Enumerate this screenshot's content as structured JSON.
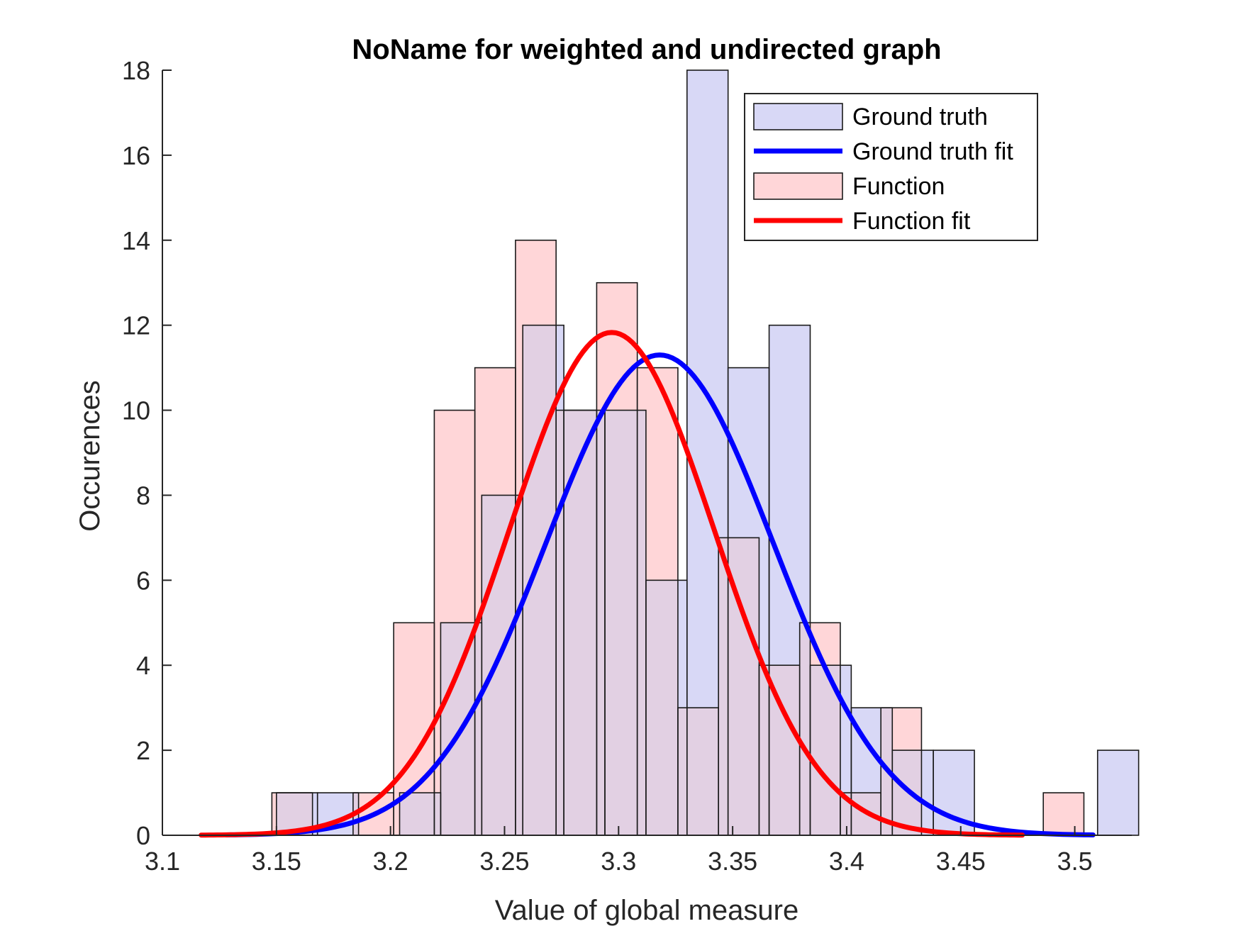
{
  "chart_data": {
    "type": "bar",
    "title": "NoName for weighted and undirected graph",
    "xlabel": "Value of global measure",
    "ylabel": "Occurences",
    "xlim": [
      3.1,
      3.525
    ],
    "ylim": [
      0,
      18
    ],
    "xticks": [
      "3.1",
      "3.15",
      "3.2",
      "3.25",
      "3.3",
      "3.35",
      "3.4",
      "3.45",
      "3.5"
    ],
    "yticks": [
      "0",
      "2",
      "4",
      "6",
      "8",
      "10",
      "12",
      "14",
      "16",
      "18"
    ],
    "grid": false,
    "legend_position": "top-right",
    "colors": {
      "ground_truth_bar": "#d8d8f6",
      "ground_truth_fit": "#0000ff",
      "function_bar": "#ffd6d8",
      "function_fit": "#ff0000",
      "overlap": "#e2d0e3"
    },
    "series": [
      {
        "name": "Ground truth",
        "kind": "histogram",
        "bin_width": 0.018,
        "bins": [
          {
            "x0": 3.15,
            "x1": 3.168,
            "count": 1
          },
          {
            "x0": 3.168,
            "x1": 3.186,
            "count": 1
          },
          {
            "x0": 3.186,
            "x1": 3.204,
            "count": 0
          },
          {
            "x0": 3.204,
            "x1": 3.222,
            "count": 1
          },
          {
            "x0": 3.222,
            "x1": 3.24,
            "count": 5
          },
          {
            "x0": 3.24,
            "x1": 3.258,
            "count": 8
          },
          {
            "x0": 3.258,
            "x1": 3.276,
            "count": 12
          },
          {
            "x0": 3.276,
            "x1": 3.294,
            "count": 10
          },
          {
            "x0": 3.294,
            "x1": 3.312,
            "count": 10
          },
          {
            "x0": 3.312,
            "x1": 3.33,
            "count": 6
          },
          {
            "x0": 3.33,
            "x1": 3.348,
            "count": 18
          },
          {
            "x0": 3.348,
            "x1": 3.366,
            "count": 11
          },
          {
            "x0": 3.366,
            "x1": 3.384,
            "count": 12
          },
          {
            "x0": 3.384,
            "x1": 3.402,
            "count": 4
          },
          {
            "x0": 3.402,
            "x1": 3.42,
            "count": 3
          },
          {
            "x0": 3.42,
            "x1": 3.438,
            "count": 2
          },
          {
            "x0": 3.438,
            "x1": 3.456,
            "count": 2
          },
          {
            "x0": 3.456,
            "x1": 3.474,
            "count": 0
          },
          {
            "x0": 3.474,
            "x1": 3.492,
            "count": 0
          },
          {
            "x0": 3.492,
            "x1": 3.51,
            "count": 0
          },
          {
            "x0": 3.51,
            "x1": 3.528,
            "count": 2
          }
        ]
      },
      {
        "name": "Ground truth fit",
        "kind": "normal_fit",
        "mean": 3.318,
        "sd": 0.05,
        "peak": 11.3,
        "x_range": [
          3.128,
          3.508
        ]
      },
      {
        "name": "Function",
        "kind": "histogram",
        "bin_width": 0.0178,
        "bins": [
          {
            "x0": 3.148,
            "x1": 3.1658,
            "count": 1
          },
          {
            "x0": 3.1658,
            "x1": 3.1836,
            "count": 0
          },
          {
            "x0": 3.1836,
            "x1": 3.2014,
            "count": 1
          },
          {
            "x0": 3.2014,
            "x1": 3.2192,
            "count": 5
          },
          {
            "x0": 3.2192,
            "x1": 3.237,
            "count": 10
          },
          {
            "x0": 3.237,
            "x1": 3.2548,
            "count": 11
          },
          {
            "x0": 3.2548,
            "x1": 3.2726,
            "count": 14
          },
          {
            "x0": 3.2726,
            "x1": 3.2904,
            "count": 10
          },
          {
            "x0": 3.2904,
            "x1": 3.3082,
            "count": 13
          },
          {
            "x0": 3.3082,
            "x1": 3.326,
            "count": 11
          },
          {
            "x0": 3.326,
            "x1": 3.3438,
            "count": 3
          },
          {
            "x0": 3.3438,
            "x1": 3.3616,
            "count": 7
          },
          {
            "x0": 3.3616,
            "x1": 3.3794,
            "count": 4
          },
          {
            "x0": 3.3794,
            "x1": 3.3972,
            "count": 5
          },
          {
            "x0": 3.3972,
            "x1": 3.415,
            "count": 1
          },
          {
            "x0": 3.415,
            "x1": 3.4328,
            "count": 3
          },
          {
            "x0": 3.4328,
            "x1": 3.4506,
            "count": 0
          },
          {
            "x0": 3.4506,
            "x1": 3.4684,
            "count": 0
          },
          {
            "x0": 3.4684,
            "x1": 3.4862,
            "count": 0
          },
          {
            "x0": 3.4862,
            "x1": 3.504,
            "count": 1
          }
        ]
      },
      {
        "name": "Function fit",
        "kind": "normal_fit",
        "mean": 3.297,
        "sd": 0.045,
        "peak": 11.83,
        "x_range": [
          3.117,
          3.477
        ]
      }
    ]
  }
}
